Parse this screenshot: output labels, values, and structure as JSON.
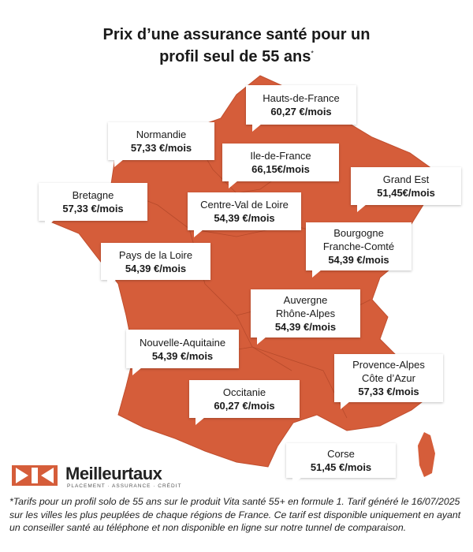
{
  "title": {
    "line1": "Prix d’une assurance santé pour un",
    "line2": "profil seul de 55 ans",
    "mark": "*"
  },
  "regions": [
    {
      "name": [
        "Hauts-de-France"
      ],
      "price": "60,27 €/mois"
    },
    {
      "name": [
        "Normandie"
      ],
      "price": "57,33 €/mois"
    },
    {
      "name": [
        "Ile-de-France"
      ],
      "price": "66,15€/mois"
    },
    {
      "name": [
        "Grand Est"
      ],
      "price": "51,45€/mois"
    },
    {
      "name": [
        "Bretagne"
      ],
      "price": "57,33 €/mois"
    },
    {
      "name": [
        "Centre-Val de Loire"
      ],
      "price": "54,39 €/mois"
    },
    {
      "name": [
        "Bourgogne",
        "Franche-Comté"
      ],
      "price": "54,39 €/mois"
    },
    {
      "name": [
        "Pays de la Loire"
      ],
      "price": "54,39 €/mois"
    },
    {
      "name": [
        "Auvergne",
        "Rhône-Alpes"
      ],
      "price": "54,39 €/mois"
    },
    {
      "name": [
        "Nouvelle-Aquitaine"
      ],
      "price": "54,39 €/mois"
    },
    {
      "name": [
        "Provence-Alpes",
        "Côte d’Azur"
      ],
      "price": "57,33 €/mois"
    },
    {
      "name": [
        "Occitanie"
      ],
      "price": "60,27 €/mois"
    },
    {
      "name": [
        "Corse"
      ],
      "price": "51,45 €/mois"
    }
  ],
  "logo": {
    "name": "Meilleurtaux",
    "tagline": "PLACEMENT · ASSURANCE · CRÉDIT"
  },
  "footnote": "*Tarifs pour un profil solo de 55 ans sur le produit Vita santé 55+ en formule 1. Tarif généré le 16/07/2025 sur les villes les plus peuplées de chaque régions de France. Ce tarif est disponible uniquement en ayant un conseiller santé au téléphone et non disponible en ligne sur notre tunnel de comparaison."
}
